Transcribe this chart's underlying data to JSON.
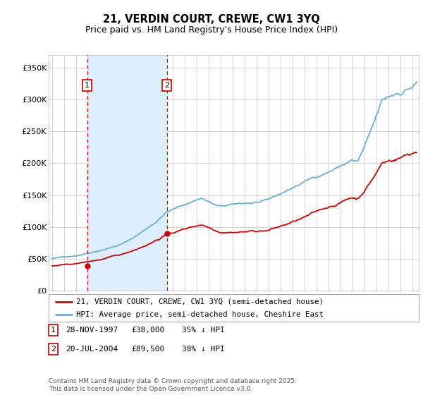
{
  "title": "21, VERDIN COURT, CREWE, CW1 3YQ",
  "subtitle": "Price paid vs. HM Land Registry's House Price Index (HPI)",
  "legend_line1": "21, VERDIN COURT, CREWE, CW1 3YQ (semi-detached house)",
  "legend_line2": "HPI: Average price, semi-detached house, Cheshire East",
  "footer": "Contains HM Land Registry data © Crown copyright and database right 2025.\nThis data is licensed under the Open Government Licence v3.0.",
  "table": [
    {
      "num": "1",
      "date": "28-NOV-1997",
      "price": "£38,000",
      "hpi": "35% ↓ HPI"
    },
    {
      "num": "2",
      "date": "20-JUL-2004",
      "price": "£89,500",
      "hpi": "38% ↓ HPI"
    }
  ],
  "purchase1_year": 1997.91,
  "purchase1_price": 38000,
  "purchase2_year": 2004.54,
  "purchase2_price": 89500,
  "hpi_color": "#6baed6",
  "price_color": "#cc0000",
  "dashed_color": "#cc0000",
  "shade_color": "#ddeeff",
  "ylim": [
    0,
    370000
  ],
  "yticks": [
    0,
    50000,
    100000,
    150000,
    200000,
    250000,
    300000,
    350000
  ],
  "ytick_labels": [
    "£0",
    "£50K",
    "£100K",
    "£150K",
    "£200K",
    "£250K",
    "£300K",
    "£350K"
  ],
  "background_color": "#ffffff",
  "grid_color": "#cccccc",
  "xlim_left": 1994.7,
  "xlim_right": 2025.5
}
